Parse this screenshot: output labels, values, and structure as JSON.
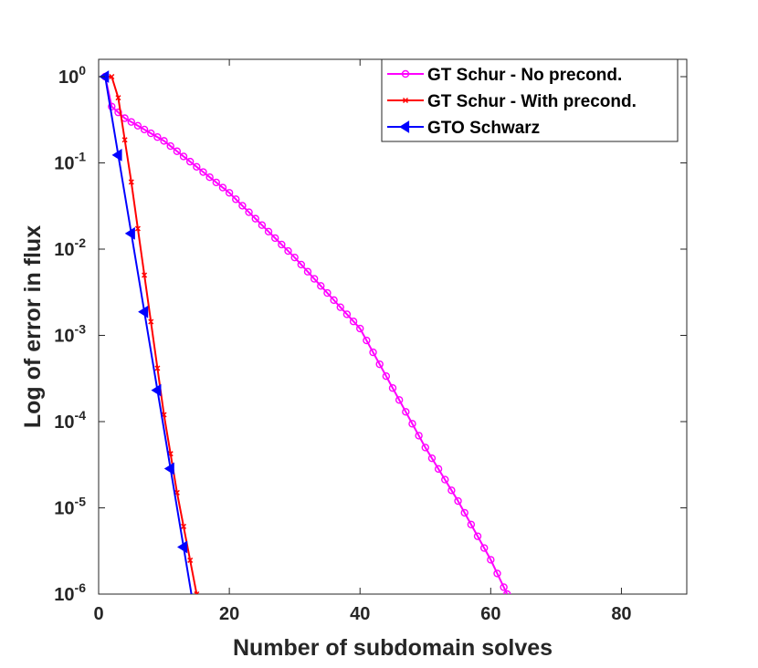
{
  "chart_data": {
    "type": "line",
    "title": "",
    "xlabel": "Number of subdomain solves",
    "ylabel": "Log of error in flux",
    "xlim": [
      0,
      90
    ],
    "ylim": [
      1e-06,
      2
    ],
    "yscale": "log",
    "x_ticks": [
      0,
      20,
      40,
      60,
      80
    ],
    "x_tick_labels": [
      "0",
      "20",
      "40",
      "60",
      "80"
    ],
    "y_ticks": [
      {
        "value": 1,
        "base": "10",
        "exp": "0"
      },
      {
        "value": 0.1,
        "base": "10",
        "exp": "-1"
      },
      {
        "value": 0.01,
        "base": "10",
        "exp": "-2"
      },
      {
        "value": 0.001,
        "base": "10",
        "exp": "-3"
      },
      {
        "value": 0.0001,
        "base": "10",
        "exp": "-4"
      },
      {
        "value": 1e-05,
        "base": "10",
        "exp": "-5"
      },
      {
        "value": 1e-06,
        "base": "10",
        "exp": "-6"
      }
    ],
    "grid": false,
    "legend_position": "top-right",
    "series": [
      {
        "name": "GT Schur - No precond.",
        "color": "#ff00ff",
        "marker": "circle",
        "anchors": [
          [
            1,
            1.0
          ],
          [
            2,
            0.45
          ],
          [
            4,
            0.33
          ],
          [
            10,
            0.18
          ],
          [
            20,
            0.045
          ],
          [
            30,
            0.008
          ],
          [
            40,
            0.0012
          ],
          [
            50,
            5e-05
          ],
          [
            55,
            1.2e-05
          ],
          [
            60,
            2.5e-06
          ],
          [
            62.5,
            1e-06
          ]
        ]
      },
      {
        "name": "GT Schur - With precond.",
        "color": "#ff0000",
        "marker": "x",
        "anchors": [
          [
            1,
            1.0
          ],
          [
            2.5,
            1.0
          ],
          [
            5,
            0.06
          ],
          [
            10,
            0.00012
          ],
          [
            12,
            1.5e-05
          ],
          [
            15,
            1e-06
          ]
        ]
      },
      {
        "name": "GTO Schwarz",
        "color": "#0000ff",
        "marker": "triangle-left",
        "anchors": [
          [
            1,
            1.0
          ],
          [
            14.2,
            1e-06
          ]
        ]
      }
    ]
  }
}
